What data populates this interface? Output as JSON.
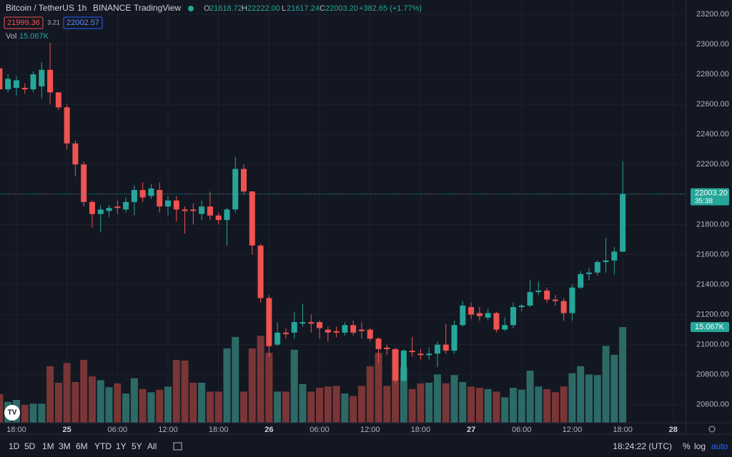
{
  "header": {
    "symbol": "Bitcoin / TetherUS",
    "interval": "1h",
    "exchange": "BINANCE",
    "source": "TradingView",
    "o_label": "O",
    "o_value": "21618.72",
    "h_label": "H",
    "h_value": "22222.00",
    "l_label": "L",
    "l_value": "21617.24",
    "c_label": "C",
    "c_value": "22003.20",
    "change": "+382.65 (+1.77%)",
    "bid": "21999.36",
    "spread": "3.21",
    "ask": "22002.57",
    "vol_label": "Vol",
    "vol_value": "15.067K"
  },
  "chart_data": {
    "type": "candlestick",
    "categories": [
      null,
      null,
      "18:00",
      null,
      null,
      null,
      null,
      null,
      "25",
      null,
      null,
      null,
      null,
      null,
      "06:00",
      null,
      null,
      null,
      null,
      null,
      "12:00",
      null,
      null,
      null,
      null,
      null,
      "18:00",
      null,
      null,
      null,
      null,
      null,
      "26",
      null,
      null,
      null,
      null,
      null,
      "06:00",
      null,
      null,
      null,
      null,
      null,
      "12:00",
      null,
      null,
      null,
      null,
      null,
      "18:00",
      null,
      null,
      null,
      null,
      null,
      "27",
      null,
      null,
      null,
      null,
      null,
      "06:00",
      null,
      null,
      null,
      null,
      null,
      "12:00",
      null,
      null,
      null,
      null,
      null,
      "18:00",
      null,
      null,
      null,
      null,
      null,
      "28",
      null
    ],
    "open": [
      22840,
      22700,
      22710,
      22710,
      22700,
      22720,
      22830,
      22680,
      22580,
      22340,
      22200,
      21950,
      21870,
      21890,
      21920,
      21900,
      21950,
      22030,
      21990,
      22030,
      21920,
      21960,
      21900,
      21900,
      21870,
      21920,
      21860,
      21830,
      21900,
      22170,
      22020,
      21660,
      21310,
      21000,
      21080,
      21080,
      21140,
      21150,
      21150,
      21100,
      21090,
      21080,
      21130,
      21100,
      21100,
      21040,
      20980,
      20970,
      20760,
      20960,
      20940,
      20930,
      20940,
      21000,
      20960,
      21130,
      21250,
      21210,
      21180,
      21210,
      21100,
      21130,
      21250,
      21260,
      21350,
      21360,
      21300,
      21290,
      21210,
      21380,
      21470,
      21480,
      21550,
      21560,
      21618.72,
      null,
      null,
      null,
      null,
      null,
      null,
      null
    ],
    "high": [
      22850,
      22800,
      22790,
      22740,
      22820,
      22880,
      23010,
      22680,
      22600,
      22360,
      22220,
      21960,
      21930,
      21930,
      21960,
      21980,
      22060,
      22080,
      22070,
      22080,
      21990,
      21990,
      21920,
      21940,
      21960,
      22020,
      21880,
      21910,
      22250,
      22200,
      22020,
      21670,
      21330,
      21150,
      21110,
      21220,
      21270,
      21200,
      21160,
      21120,
      21120,
      21150,
      21160,
      21150,
      21110,
      21050,
      21000,
      20980,
      20970,
      21050,
      20970,
      20980,
      21020,
      21140,
      21160,
      21290,
      21280,
      21250,
      21240,
      21220,
      21180,
      21280,
      21270,
      21430,
      21420,
      21380,
      21330,
      21310,
      21400,
      21490,
      21510,
      21560,
      21710,
      21650,
      22222,
      null,
      null,
      null,
      null,
      null,
      null,
      null
    ],
    "low": [
      22660,
      22680,
      22660,
      22670,
      22680,
      22640,
      22600,
      22560,
      22300,
      22120,
      21920,
      21780,
      21750,
      21850,
      21870,
      21880,
      21860,
      21950,
      21970,
      21880,
      21860,
      21820,
      21740,
      21800,
      21830,
      21830,
      21800,
      21660,
      21880,
      22000,
      21600,
      21280,
      20920,
      20990,
      21040,
      21040,
      21120,
      21080,
      21040,
      21020,
      21050,
      21060,
      21060,
      21040,
      21020,
      20880,
      20930,
      20740,
      20750,
      20920,
      20900,
      20900,
      20850,
      20940,
      20940,
      21120,
      21170,
      21160,
      21160,
      21080,
      21090,
      21110,
      21220,
      21250,
      21330,
      21280,
      21260,
      21160,
      21160,
      21370,
      21430,
      21460,
      21480,
      21470,
      21617.24,
      null,
      null,
      null,
      null,
      null,
      null,
      null
    ],
    "close": [
      22700,
      22770,
      22760,
      22700,
      22800,
      22830,
      22680,
      22580,
      22340,
      22200,
      21950,
      21870,
      21900,
      21910,
      21910,
      21950,
      22030,
      21980,
      22040,
      21920,
      21960,
      21900,
      21890,
      21890,
      21920,
      21860,
      21830,
      21900,
      22170,
      22020,
      21660,
      21310,
      20990,
      21080,
      21070,
      21150,
      21150,
      21140,
      21110,
      21080,
      21080,
      21130,
      21080,
      21090,
      21040,
      20970,
      20970,
      20760,
      20960,
      20950,
      20930,
      20940,
      21000,
      20960,
      21130,
      21260,
      21200,
      21190,
      21210,
      21100,
      21130,
      21250,
      21260,
      21350,
      21360,
      21300,
      21290,
      21210,
      21380,
      21470,
      21480,
      21550,
      21560,
      21620,
      22003.2,
      null,
      null,
      null,
      null,
      null,
      null,
      null
    ],
    "volume": [
      4.5,
      3.3,
      3.6,
      2.8,
      3.0,
      3.0,
      8.9,
      6.3,
      9.4,
      6.4,
      9.9,
      7.3,
      6.7,
      5.6,
      6.2,
      4.6,
      7.0,
      5.3,
      4.8,
      5.2,
      5.7,
      9.9,
      9.8,
      6.3,
      6.3,
      4.9,
      4.9,
      11.7,
      13.5,
      4.9,
      11.7,
      13.7,
      11.0,
      4.9,
      4.9,
      11.5,
      6.1,
      4.9,
      5.5,
      5.7,
      5.8,
      4.6,
      4.2,
      5.8,
      8.9,
      11.0,
      5.8,
      11.5,
      8.7,
      5.3,
      6.2,
      6.3,
      7.6,
      6.2,
      7.5,
      6.4,
      5.7,
      5.5,
      5.3,
      4.9,
      4.0,
      5.5,
      5.2,
      8.2,
      5.7,
      5.3,
      4.8,
      5.7,
      7.8,
      8.9,
      7.6,
      7.5,
      12.1,
      10.7,
      15.067,
      null,
      null,
      null,
      null,
      null,
      null,
      null
    ],
    "ylim": [
      20480,
      23295
    ],
    "yticks": [
      {
        "value": 20600,
        "label": "20600.00"
      },
      {
        "value": 20800,
        "label": "20800.00"
      },
      {
        "value": 21000,
        "label": "21000.00"
      },
      {
        "value": 21200,
        "label": "21200.00"
      },
      {
        "value": 21400,
        "label": "21400.00"
      },
      {
        "value": 21600,
        "label": "21600.00"
      },
      {
        "value": 21800,
        "label": "21800.00"
      },
      {
        "value": 22000,
        "label": "22000.00"
      },
      {
        "value": 22200,
        "label": "22200.00"
      },
      {
        "value": 22400,
        "label": "22400.00"
      },
      {
        "value": 22600,
        "label": "22600.00"
      },
      {
        "value": 22800,
        "label": "22800.00"
      },
      {
        "value": 23000,
        "label": "23000.00"
      },
      {
        "value": 23200,
        "label": "23200.00"
      }
    ],
    "up_color": "#26a69a",
    "down_color": "#ef5350",
    "vol_up_color": "#2d6a66",
    "vol_down_color": "#7a3536",
    "last_price_label": "22003.20",
    "countdown": "35:38",
    "last_volume_label": "15.067K",
    "grid": true
  },
  "toolbar": {
    "ranges": [
      "1D",
      "5D",
      "1M",
      "3M",
      "6M",
      "YTD",
      "1Y",
      "5Y",
      "All"
    ],
    "clock": "18:24:22 (UTC)",
    "percent": "%",
    "log": "log",
    "auto": "auto"
  }
}
